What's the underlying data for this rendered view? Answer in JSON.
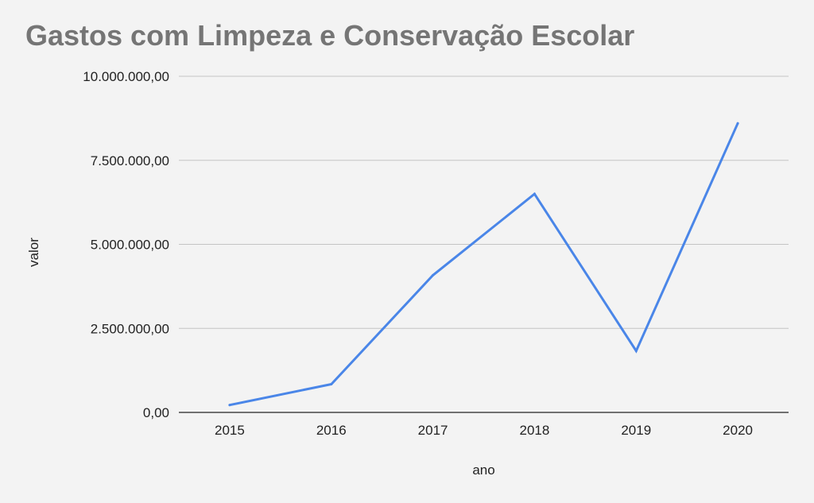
{
  "chart_data": {
    "type": "line",
    "title": "Gastos com Limpeza e Conservação Escolar",
    "xlabel": "ano",
    "ylabel": "valor",
    "categories": [
      "2015",
      "2016",
      "2017",
      "2018",
      "2019",
      "2020"
    ],
    "series": [
      {
        "values": [
          220000,
          840000,
          4080000,
          6500000,
          1830000,
          8600000
        ],
        "color": "#4a86e8"
      }
    ],
    "ylim": [
      0,
      10000000
    ],
    "yticks": [
      0,
      2500000,
      5000000,
      7500000,
      10000000
    ],
    "ytick_labels": [
      "0,00",
      "2.500.000,00",
      "5.000.000,00",
      "7.500.000,00",
      "10.000.000,00"
    ],
    "grid": true,
    "legend": "none",
    "colors": {
      "background": "#f3f3f3",
      "grid": "#c4c4c4",
      "axis": "#222222",
      "title": "#757575"
    }
  }
}
